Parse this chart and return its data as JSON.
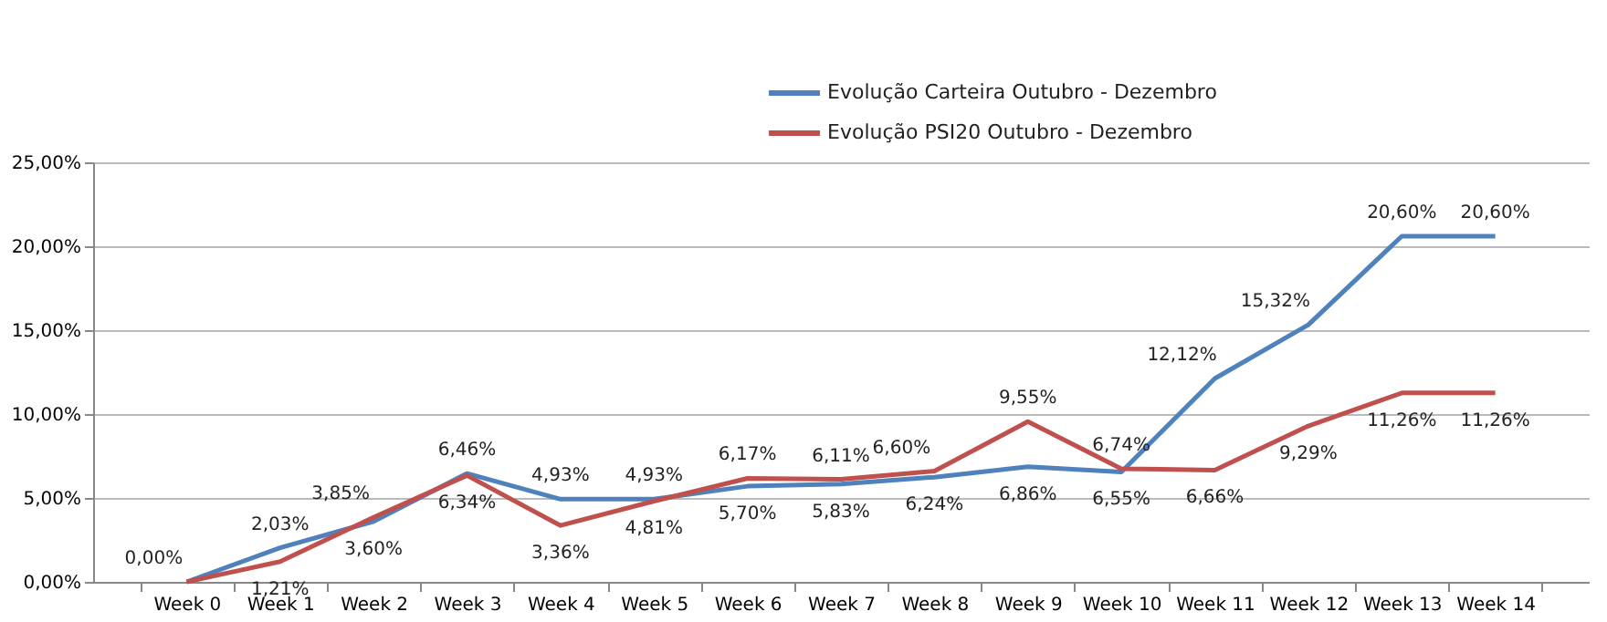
{
  "chart_data": {
    "type": "line",
    "categories": [
      "Week 0",
      "Week 1",
      "Week 2",
      "Week 3",
      "Week 4",
      "Week 5",
      "Week 6",
      "Week 7",
      "Week 8",
      "Week 9",
      "Week 10",
      "Week 11",
      "Week 12",
      "Week 13",
      "Week 14"
    ],
    "series": [
      {
        "name": "Evolução Carteira Outubro - Dezembro",
        "color": "#4f81bd",
        "values": [
          0,
          2.03,
          3.6,
          6.46,
          4.93,
          4.93,
          5.7,
          5.83,
          6.24,
          6.86,
          6.55,
          12.12,
          15.32,
          20.6,
          20.6
        ],
        "value_labels": [
          "0,00%",
          "2,03%",
          "3,60%",
          "6,46%",
          "4,93%",
          "4,93%",
          "5,70%",
          "5,83%",
          "6,24%",
          "6,86%",
          "6,55%",
          "12,12%",
          "15,32%",
          "20,60%",
          "20,60%"
        ]
      },
      {
        "name": "Evolução PSI20 Outubro - Dezembro",
        "color": "#c0504d",
        "values": [
          0,
          1.21,
          3.85,
          6.34,
          3.36,
          4.81,
          6.17,
          6.11,
          6.6,
          9.55,
          6.74,
          6.66,
          9.29,
          11.26,
          11.26
        ],
        "value_labels": [
          null,
          "1,21%",
          "3,85%",
          "6,34%",
          "3,36%",
          "4,81%",
          "6,17%",
          "6,11%",
          "6,60%",
          "9,55%",
          "6,74%",
          "6,66%",
          "9,29%",
          "11,26%",
          "11,26%"
        ]
      }
    ],
    "ylim": [
      0,
      25
    ],
    "yticks": [
      {
        "value": 0,
        "label": "0,00%"
      },
      {
        "value": 5,
        "label": "5,00%"
      },
      {
        "value": 10,
        "label": "10,00%"
      },
      {
        "value": 15,
        "label": "15,00%"
      },
      {
        "value": 20,
        "label": "20,00%"
      },
      {
        "value": 25,
        "label": "25,00%"
      }
    ],
    "grid": "y",
    "legend": "top",
    "marker": "none",
    "line_style": "solid"
  }
}
